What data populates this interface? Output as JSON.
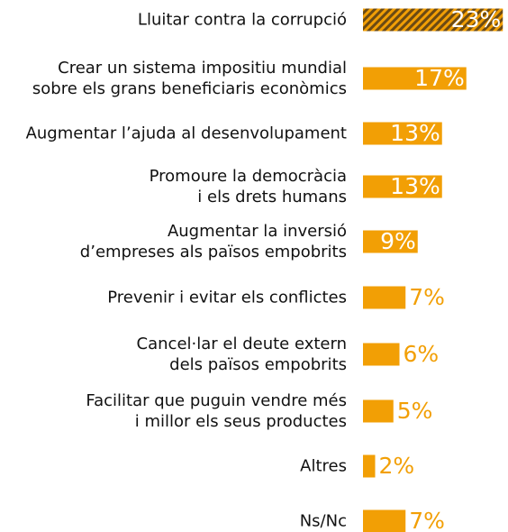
{
  "chart_data": {
    "type": "bar",
    "orientation": "horizontal",
    "categories": [
      "Lluitar contra la corrupció",
      "Crear un sistema impositiu mundial\nsobre els grans beneficiaris econòmics",
      "Augmentar l’ajuda al desenvolupament",
      "Promoure la democràcia\ni els drets humans",
      "Augmentar la inversió\nd’empreses als països empobrits",
      "Prevenir i evitar els conflictes",
      "Cancel·lar el deute extern\ndels països empobrits",
      "Facilitar que puguin vendre més\ni millor els seus productes",
      "Altres",
      "Ns/Nc"
    ],
    "values": [
      23,
      17,
      13,
      13,
      9,
      7,
      6,
      5,
      2,
      7
    ],
    "value_labels": [
      "23%",
      "17%",
      "13%",
      "13%",
      "9%",
      "7%",
      "6%",
      "5%",
      "2%",
      "7%"
    ],
    "color": "#f29f05",
    "hatch_color": "#6b4a14",
    "hatched": [
      true,
      false,
      false,
      false,
      false,
      false,
      false,
      false,
      false,
      false
    ]
  }
}
